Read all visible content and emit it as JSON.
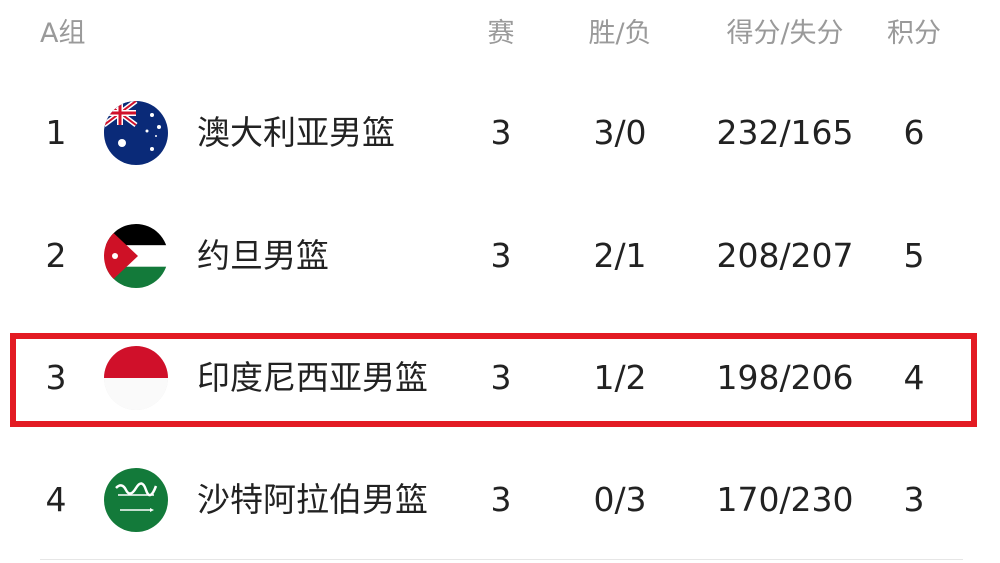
{
  "header": {
    "group": "A组",
    "games": "赛",
    "win_loss": "胜/负",
    "points_for_against": "得分/失分",
    "standing_points": "积分"
  },
  "highlight_color": "#e31b23",
  "rows": [
    {
      "rank": "1",
      "flag": "australia-flag",
      "team": "澳大利亚男篮",
      "games": "3",
      "win_loss": "3/0",
      "score": "232/165",
      "points": "6"
    },
    {
      "rank": "2",
      "flag": "jordan-flag",
      "team": "约旦男篮",
      "games": "3",
      "win_loss": "2/1",
      "score": "208/207",
      "points": "5"
    },
    {
      "rank": "3",
      "flag": "indonesia-flag",
      "team": "印度尼西亚男篮",
      "games": "3",
      "win_loss": "1/2",
      "score": "198/206",
      "points": "4",
      "highlighted": true
    },
    {
      "rank": "4",
      "flag": "saudi-arabia-flag",
      "team": "沙特阿拉伯男篮",
      "games": "3",
      "win_loss": "0/3",
      "score": "170/230",
      "points": "3"
    }
  ]
}
